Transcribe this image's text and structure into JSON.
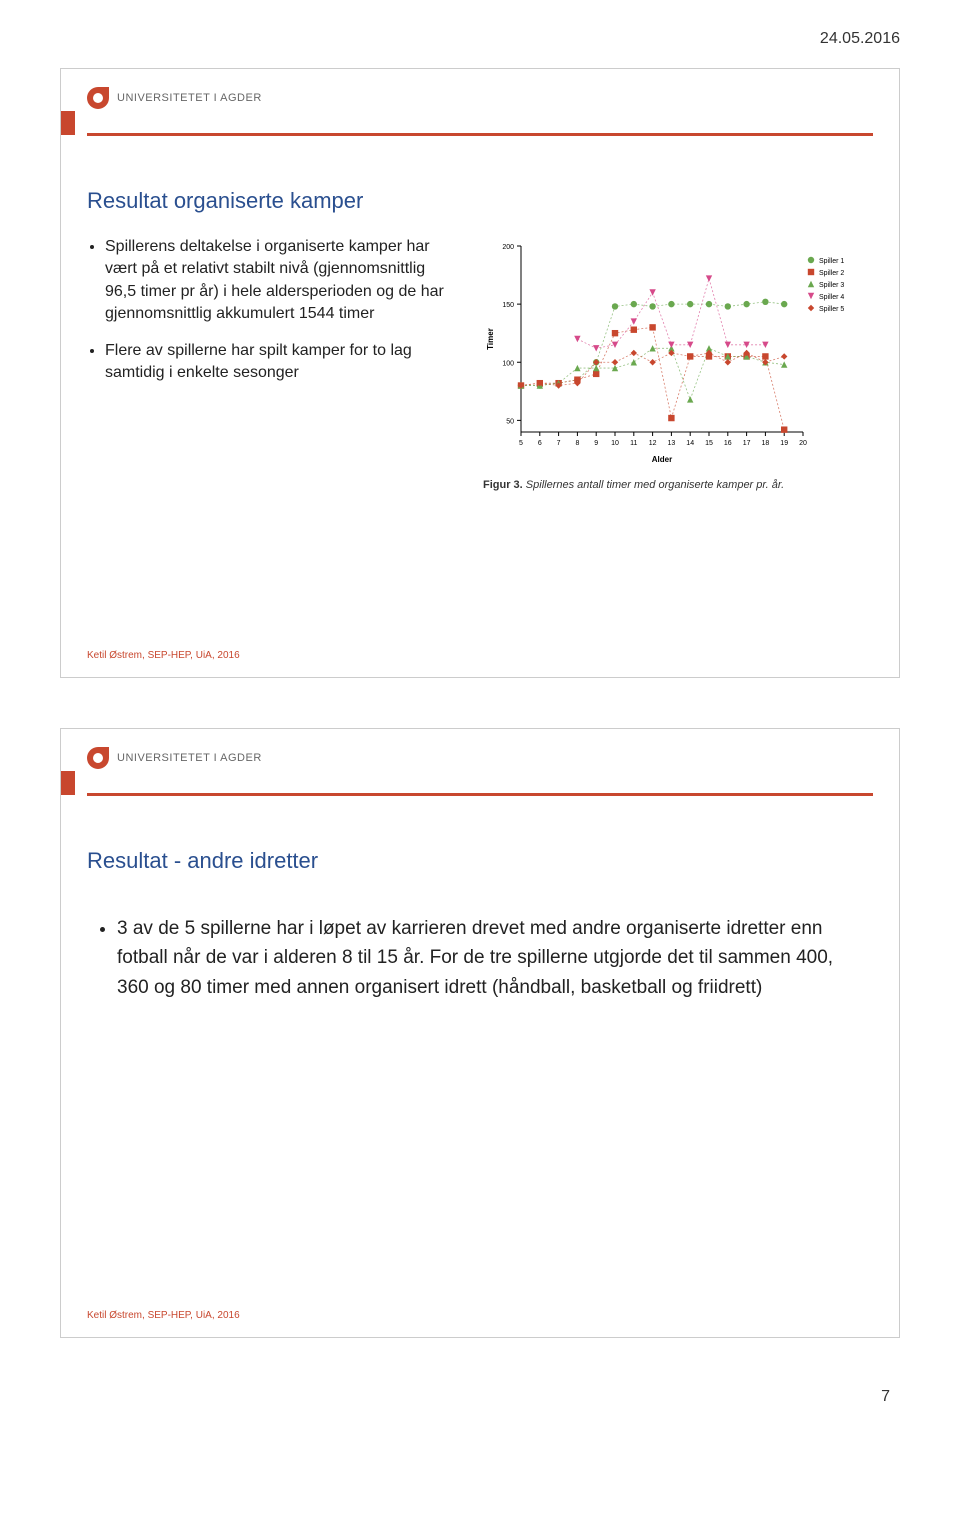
{
  "page": {
    "date": "24.05.2016",
    "page_number": "7",
    "university": "UNIVERSITETET I AGDER",
    "footer_credit": "Ketil Østrem, SEP-HEP, UiA, 2016"
  },
  "slide1": {
    "title": "Resultat organiserte kamper",
    "bullets": [
      "Spillerens deltakelse i organiserte kamper har vært på et relativt stabilt nivå (gjennomsnittlig 96,5 timer pr år) i hele aldersperioden og de har gjennomsnittlig akkumulert 1544 timer",
      "Flere av spillerne har spilt kamper for to lag samtidig i enkelte sesonger"
    ],
    "chart": {
      "caption_label": "Figur 3.",
      "caption_text": " Spillernes antall timer med organiserte kamper pr. år.",
      "ylabel": "Timer",
      "xlabel": "Alder",
      "xlim": [
        5,
        20
      ],
      "ylim": [
        40,
        200
      ],
      "yticks": [
        50,
        100,
        150,
        200
      ],
      "xticks": [
        5,
        6,
        7,
        8,
        9,
        10,
        11,
        12,
        13,
        14,
        15,
        16,
        17,
        18,
        19,
        20
      ],
      "series": [
        {
          "name": "Spiller 1",
          "marker": "circle",
          "color": "#6aa84f",
          "points": [
            [
              5,
              80
            ],
            [
              6,
              80
            ],
            [
              7,
              82
            ],
            [
              8,
              85
            ],
            [
              9,
              100
            ],
            [
              10,
              148
            ],
            [
              11,
              150
            ],
            [
              12,
              148
            ],
            [
              13,
              150
            ],
            [
              14,
              150
            ],
            [
              15,
              150
            ],
            [
              16,
              148
            ],
            [
              17,
              150
            ],
            [
              18,
              152
            ],
            [
              19,
              150
            ]
          ]
        },
        {
          "name": "Spiller 2",
          "marker": "square",
          "color": "#c8472e",
          "points": [
            [
              5,
              80
            ],
            [
              6,
              82
            ],
            [
              7,
              82
            ],
            [
              8,
              85
            ],
            [
              9,
              90
            ],
            [
              10,
              125
            ],
            [
              11,
              128
            ],
            [
              12,
              130
            ],
            [
              13,
              52
            ],
            [
              14,
              105
            ],
            [
              15,
              105
            ],
            [
              16,
              105
            ],
            [
              17,
              105
            ],
            [
              18,
              105
            ],
            [
              19,
              42
            ]
          ]
        },
        {
          "name": "Spiller 3",
          "marker": "triangle",
          "color": "#6aa84f",
          "points": [
            [
              5,
              80
            ],
            [
              6,
              80
            ],
            [
              7,
              82
            ],
            [
              8,
              95
            ],
            [
              9,
              95
            ],
            [
              10,
              95
            ],
            [
              11,
              100
            ],
            [
              12,
              112
            ],
            [
              13,
              112
            ],
            [
              14,
              68
            ],
            [
              15,
              112
            ],
            [
              16,
              105
            ],
            [
              17,
              105
            ],
            [
              18,
              100
            ],
            [
              19,
              98
            ]
          ]
        },
        {
          "name": "Spiller 4",
          "marker": "tridown",
          "color": "#d64a8a",
          "points": [
            [
              8,
              120
            ],
            [
              9,
              112
            ],
            [
              10,
              115
            ],
            [
              11,
              135
            ],
            [
              12,
              160
            ],
            [
              13,
              115
            ],
            [
              14,
              115
            ],
            [
              15,
              172
            ],
            [
              16,
              115
            ],
            [
              17,
              115
            ],
            [
              18,
              115
            ]
          ]
        },
        {
          "name": "Spiller 5",
          "marker": "diamond",
          "color": "#c8472e",
          "points": [
            [
              5,
              80
            ],
            [
              6,
              82
            ],
            [
              7,
              80
            ],
            [
              8,
              82
            ],
            [
              9,
              100
            ],
            [
              10,
              100
            ],
            [
              11,
              108
            ],
            [
              12,
              100
            ],
            [
              13,
              108
            ],
            [
              14,
              105
            ],
            [
              15,
              108
            ],
            [
              16,
              100
            ],
            [
              17,
              108
            ],
            [
              18,
              100
            ],
            [
              19,
              105
            ]
          ]
        }
      ]
    }
  },
  "slide2": {
    "title": "Resultat - andre idretter",
    "bullets": [
      "3 av de 5 spillerne har i løpet av karrieren drevet med andre organiserte idretter enn fotball når de var i alderen 8 til 15 år. For de tre spillerne utgjorde det til sammen 400, 360 og 80 timer med annen organisert idrett (håndball, basketball og friidrett)"
    ]
  }
}
